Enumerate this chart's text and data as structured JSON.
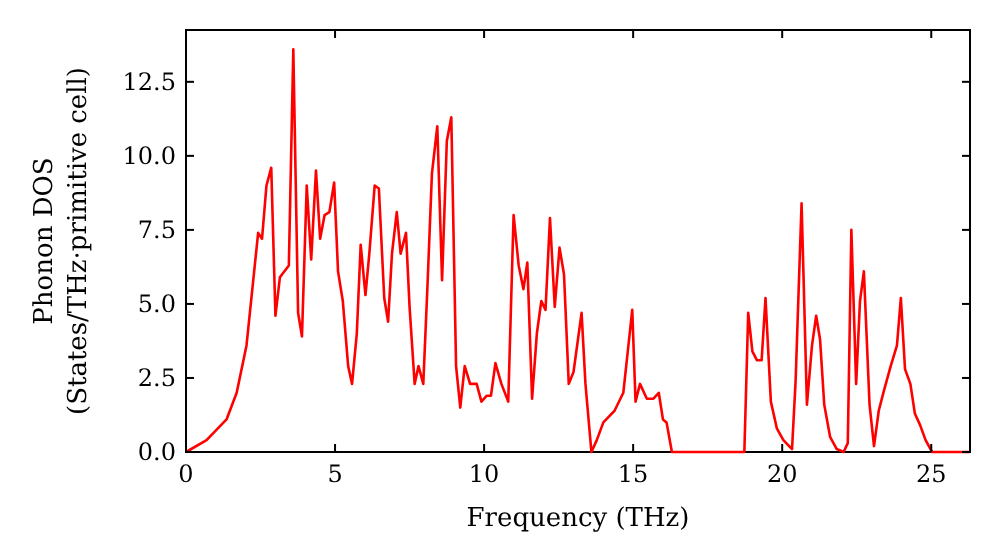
{
  "chart_data": {
    "type": "line",
    "xlabel": "Frequency (THz)",
    "ylabel": "Phonon DOS\n(States/THz·primitive cell)",
    "xlim": [
      0,
      26.3
    ],
    "ylim": [
      0,
      14.25
    ],
    "xticks": [
      0,
      5,
      10,
      15,
      20,
      25
    ],
    "yticks": [
      {
        "value": 0,
        "label": "0.0"
      },
      {
        "value": 2.5,
        "label": "2.5"
      },
      {
        "value": 5,
        "label": "5.0"
      },
      {
        "value": 7.5,
        "label": "7.5"
      },
      {
        "value": 10,
        "label": "10.0"
      },
      {
        "value": 12.5,
        "label": "12.5"
      }
    ],
    "grid": false,
    "line_style": "solid",
    "marker": "none",
    "series": [
      {
        "color": "#ff0000",
        "x": [
          0,
          0.69,
          1.36,
          1.7,
          2.03,
          2.42,
          2.55,
          2.7,
          2.86,
          3.0,
          3.15,
          3.45,
          3.6,
          3.76,
          3.89,
          4.05,
          4.2,
          4.36,
          4.5,
          4.65,
          4.81,
          4.97,
          5.1,
          5.26,
          5.44,
          5.57,
          5.73,
          5.86,
          6.02,
          6.15,
          6.33,
          6.47,
          6.65,
          6.78,
          6.91,
          7.07,
          7.2,
          7.38,
          7.5,
          7.67,
          7.8,
          7.96,
          8.1,
          8.25,
          8.43,
          8.59,
          8.75,
          8.9,
          9.06,
          9.2,
          9.35,
          9.53,
          9.75,
          9.91,
          10.09,
          10.23,
          10.38,
          10.58,
          10.81,
          10.99,
          11.16,
          11.32,
          11.45,
          11.61,
          11.77,
          11.92,
          12.06,
          12.21,
          12.37,
          12.53,
          12.68,
          12.84,
          13.0,
          13.27,
          13.4,
          13.6,
          13.78,
          14.0,
          14.38,
          14.67,
          14.97,
          15.08,
          15.23,
          15.46,
          15.68,
          15.86,
          16.0,
          16.12,
          16.3,
          18.73,
          18.86,
          19.0,
          19.15,
          19.31,
          19.44,
          19.62,
          19.82,
          20.04,
          20.33,
          20.45,
          20.65,
          20.83,
          21.0,
          21.14,
          21.27,
          21.41,
          21.61,
          21.83,
          22.06,
          22.2,
          22.32,
          22.48,
          22.61,
          22.74,
          22.93,
          23.08,
          23.24,
          23.42,
          23.64,
          23.85,
          23.98,
          24.12,
          24.3,
          24.45,
          24.63,
          24.81,
          25.03,
          26.3
        ],
        "values": [
          0,
          0.4,
          1.1,
          2.0,
          3.6,
          7.4,
          7.2,
          9.0,
          9.6,
          4.6,
          5.9,
          6.3,
          13.6,
          4.7,
          3.9,
          9.0,
          6.5,
          9.5,
          7.2,
          8.0,
          8.1,
          9.1,
          6.1,
          5.1,
          2.9,
          2.3,
          4.0,
          7.0,
          5.3,
          6.7,
          9.0,
          8.9,
          5.2,
          4.4,
          6.7,
          8.1,
          6.7,
          7.4,
          4.9,
          2.3,
          2.9,
          2.3,
          5.6,
          9.4,
          11.0,
          5.8,
          10.5,
          11.3,
          2.9,
          1.5,
          2.9,
          2.3,
          2.3,
          1.7,
          1.9,
          1.9,
          3.0,
          2.3,
          1.7,
          8.0,
          6.3,
          5.5,
          6.4,
          1.8,
          4.0,
          5.1,
          4.8,
          7.9,
          4.9,
          6.9,
          6.0,
          2.3,
          2.7,
          4.7,
          2.3,
          0,
          0.4,
          1.0,
          1.4,
          2.0,
          4.8,
          1.7,
          2.3,
          1.8,
          1.8,
          2.0,
          1.1,
          1.0,
          0,
          0,
          4.7,
          3.4,
          3.1,
          3.1,
          5.2,
          1.7,
          0.8,
          0.4,
          0.1,
          2.4,
          8.4,
          1.6,
          3.6,
          4.6,
          3.8,
          1.6,
          0.5,
          0.1,
          0,
          0.3,
          7.5,
          2.3,
          5.1,
          6.1,
          1.6,
          0.2,
          1.4,
          2.1,
          2.9,
          3.6,
          5.2,
          2.8,
          2.3,
          1.3,
          0.9,
          0.4,
          0,
          0
        ]
      }
    ]
  }
}
